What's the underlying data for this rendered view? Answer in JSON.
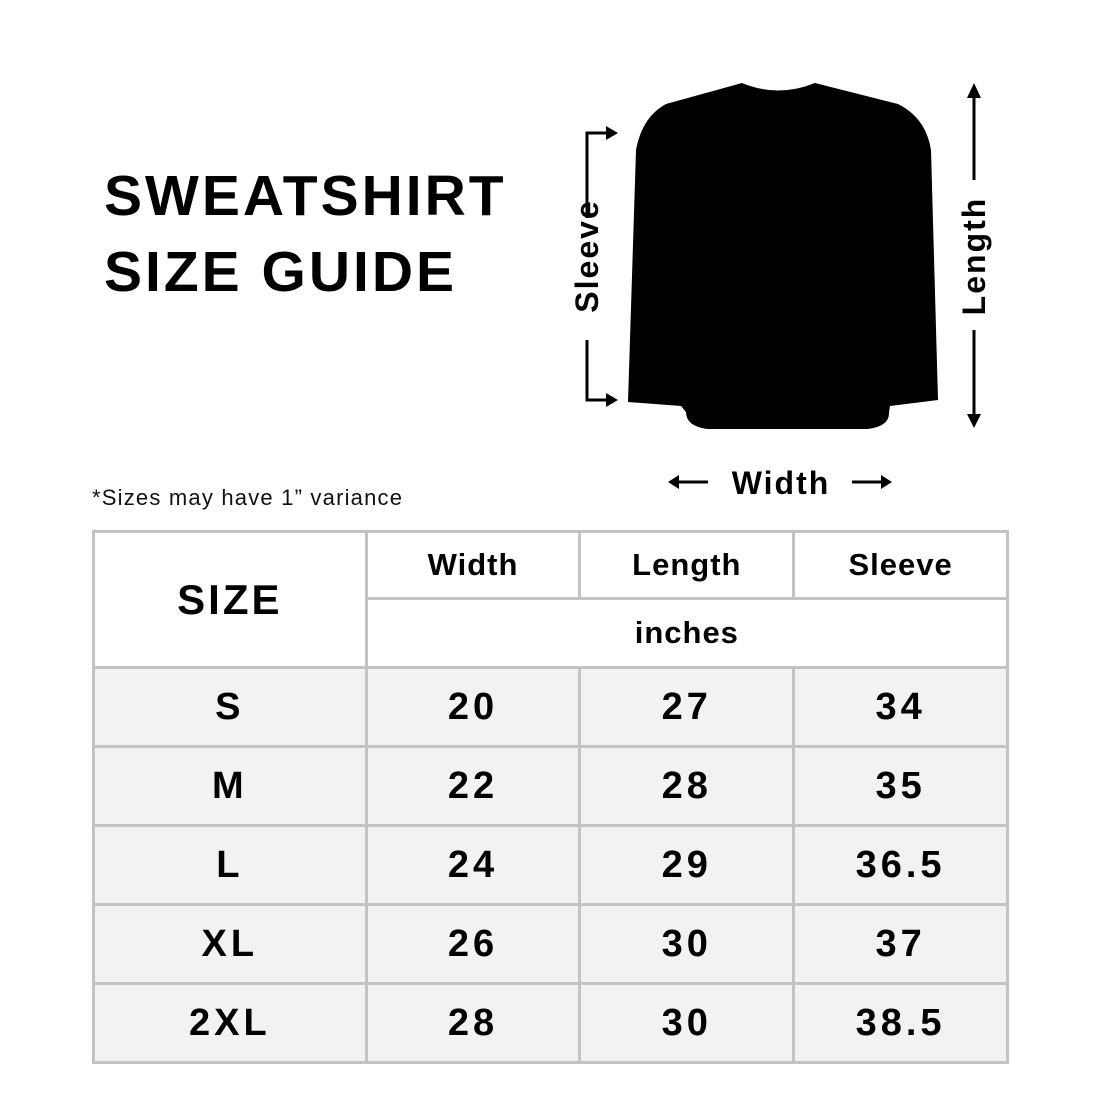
{
  "title": {
    "line1": "SWEATSHIRT",
    "line2": "SIZE GUIDE"
  },
  "note": "*Sizes may have 1” variance",
  "diagram": {
    "sleeve_label": "Sleeve",
    "length_label": "Length",
    "width_label": "Width",
    "garment_color": "#000000"
  },
  "table": {
    "size_header": "SIZE",
    "columns": [
      "Width",
      "Length",
      "Sleeve"
    ],
    "unit": "inches",
    "rows": [
      {
        "size": "S",
        "values": [
          "20",
          "27",
          "34"
        ]
      },
      {
        "size": "M",
        "values": [
          "22",
          "28",
          "35"
        ]
      },
      {
        "size": "L",
        "values": [
          "24",
          "29",
          "36.5"
        ]
      },
      {
        "size": "XL",
        "values": [
          "26",
          "30",
          "37"
        ]
      },
      {
        "size": "2XL",
        "values": [
          "28",
          "30",
          "38.5"
        ]
      }
    ],
    "border_color": "#c3c3c3",
    "row_fill": "#f2f2f2"
  }
}
